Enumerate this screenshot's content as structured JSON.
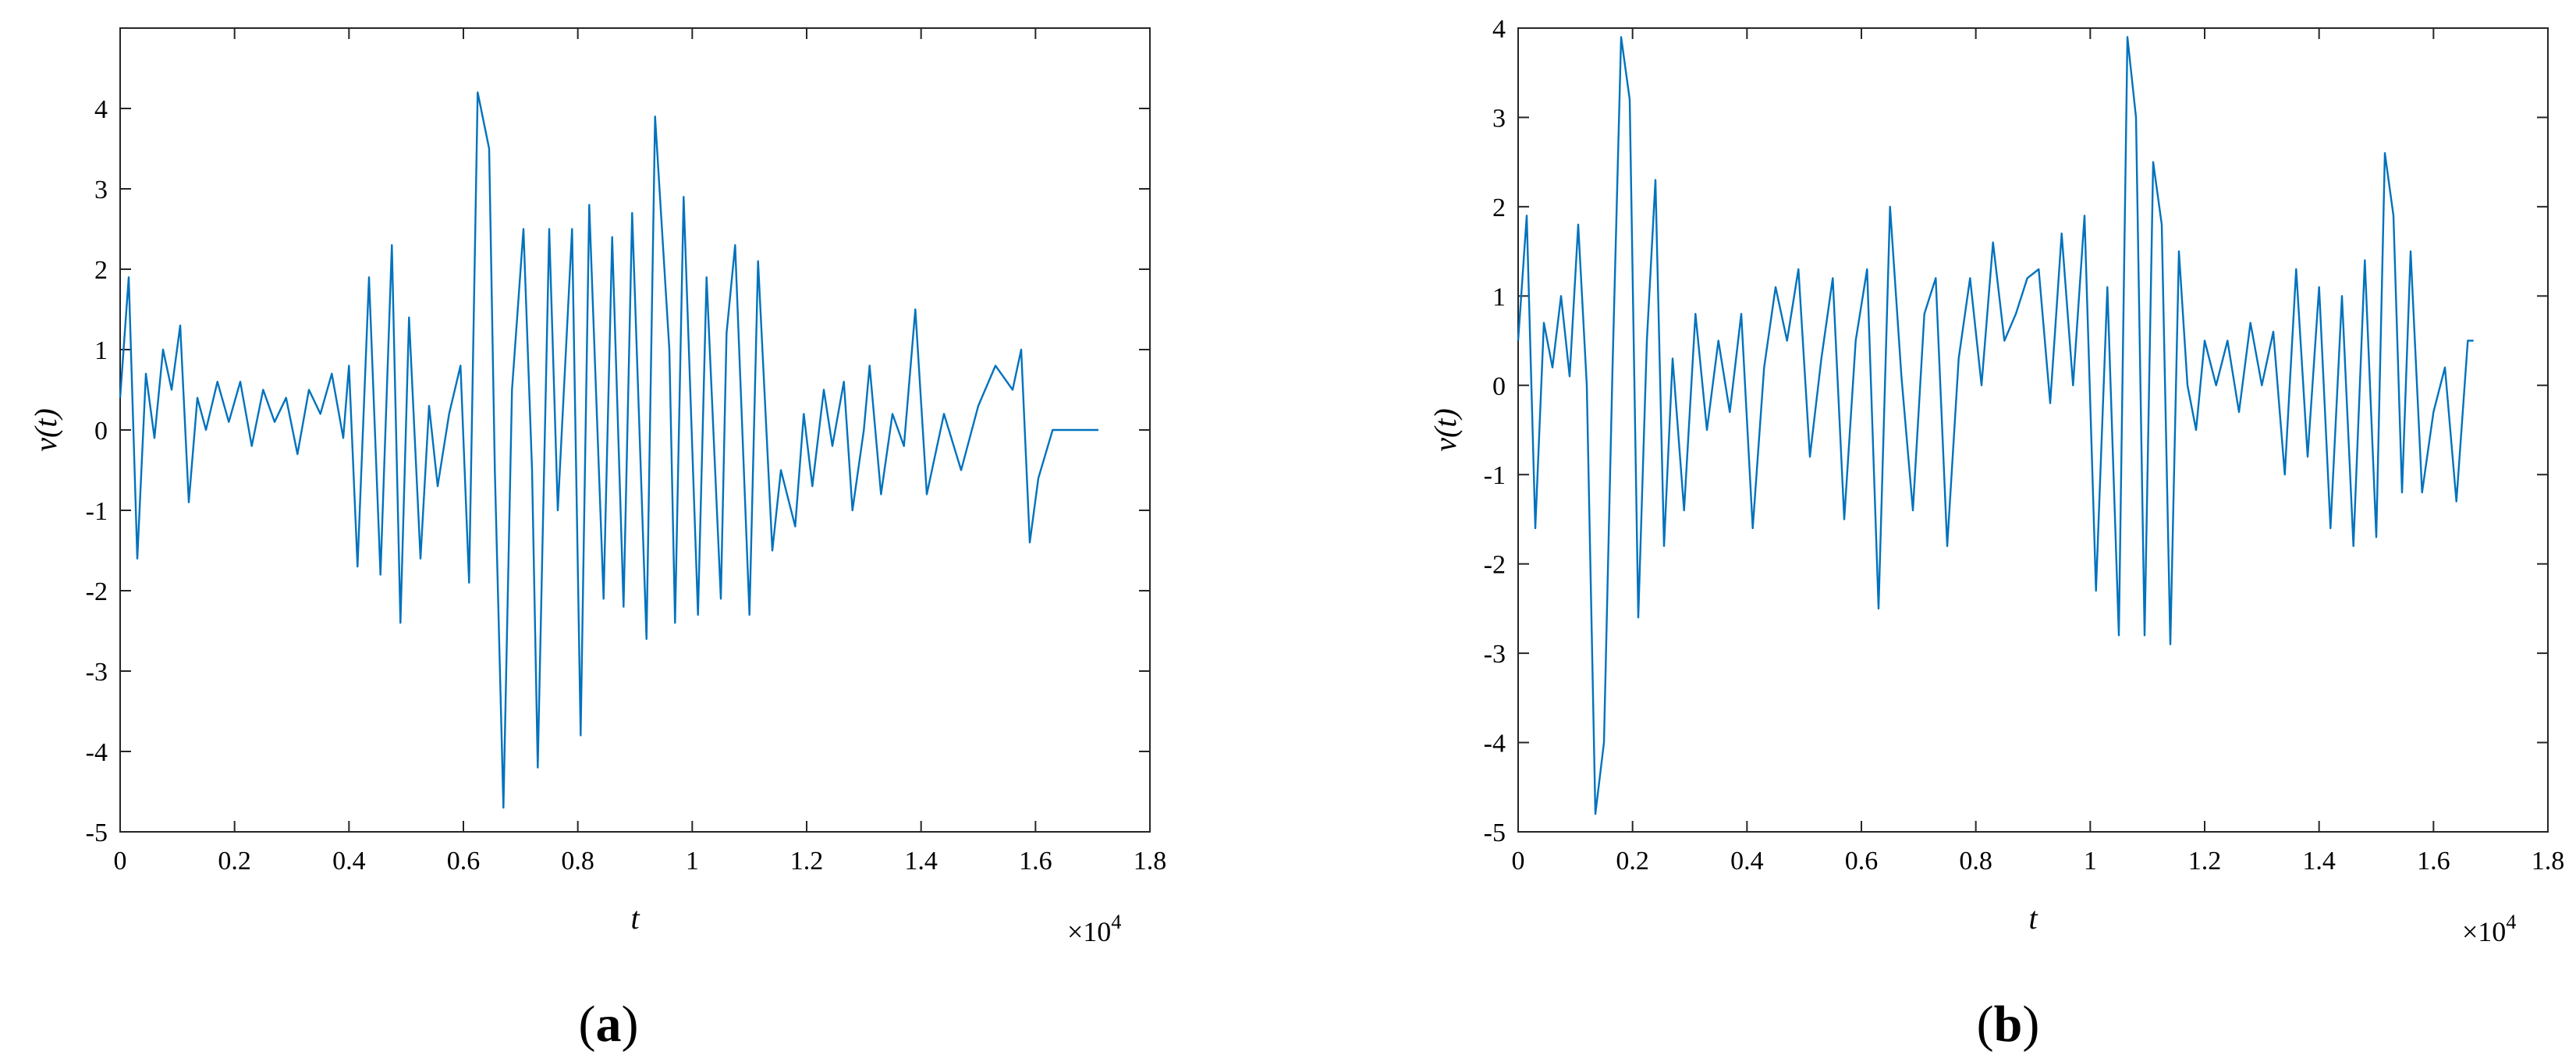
{
  "figure": {
    "panels": [
      {
        "label_open": "(",
        "label_letter": "a",
        "label_close": ")"
      },
      {
        "label_open": "(",
        "label_letter": "b",
        "label_close": ")"
      }
    ]
  },
  "chart_data": [
    {
      "type": "line",
      "xlabel": "t",
      "ylabel": "v(t)",
      "xlim": [
        0,
        18000
      ],
      "ylim": [
        -5,
        5
      ],
      "x_ticks": [
        0,
        2000,
        4000,
        6000,
        8000,
        10000,
        12000,
        14000,
        16000,
        18000
      ],
      "x_tick_labels": [
        "0",
        "0.2",
        "0.4",
        "0.6",
        "0.8",
        "1",
        "1.2",
        "1.4",
        "1.6",
        "1.8"
      ],
      "y_ticks": [
        -5,
        -4,
        -3,
        -2,
        -1,
        0,
        1,
        2,
        3,
        4
      ],
      "y_tick_labels": [
        "-5",
        "-4",
        "-3",
        "-2",
        "-1",
        "0",
        "1",
        "2",
        "3",
        "4"
      ],
      "x_multiplier": "×10",
      "x_multiplier_exp": "4",
      "grid": false,
      "line_color": "#0072BD",
      "series": [
        {
          "x": [
            0,
            150,
            300,
            450,
            600,
            750,
            900,
            1050,
            1200,
            1350,
            1500,
            1700,
            1900,
            2100,
            2300,
            2500,
            2700,
            2900,
            3100,
            3300,
            3500,
            3700,
            3900,
            4000,
            4150,
            4350,
            4550,
            4750,
            4900,
            5050,
            5250,
            5400,
            5550,
            5750,
            5950,
            6100,
            6250,
            6450,
            6550,
            6700,
            6850,
            7050,
            7200,
            7300,
            7500,
            7650,
            7900,
            8050,
            8200,
            8450,
            8600,
            8800,
            8950,
            9200,
            9350,
            9600,
            9700,
            9850,
            10100,
            10250,
            10500,
            10600,
            10750,
            11000,
            11150,
            11400,
            11550,
            11800,
            11950,
            12100,
            12300,
            12450,
            12650,
            12800,
            13000,
            13100,
            13300,
            13500,
            13700,
            13900,
            14100,
            14400,
            14700,
            15000,
            15300,
            15600,
            15750,
            15900,
            16050,
            16300,
            16500,
            16700,
            16850,
            17000,
            17100
          ],
          "y": [
            0.4,
            1.9,
            -1.6,
            0.7,
            -0.1,
            1.0,
            0.5,
            1.3,
            -0.9,
            0.4,
            0.0,
            0.6,
            0.1,
            0.6,
            -0.2,
            0.5,
            0.1,
            0.4,
            -0.3,
            0.5,
            0.2,
            0.7,
            -0.1,
            0.8,
            -1.7,
            1.9,
            -1.8,
            2.3,
            -2.4,
            1.4,
            -1.6,
            0.3,
            -0.7,
            0.2,
            0.8,
            -1.9,
            4.2,
            3.5,
            -0.5,
            -4.7,
            0.5,
            2.5,
            -0.5,
            -4.2,
            2.5,
            -1.0,
            2.5,
            -3.8,
            2.8,
            -2.1,
            2.4,
            -2.2,
            2.7,
            -2.6,
            3.9,
            1.0,
            -2.4,
            2.9,
            -2.3,
            1.9,
            -2.1,
            1.2,
            2.3,
            -2.3,
            2.1,
            -1.5,
            -0.5,
            -1.2,
            0.2,
            -0.7,
            0.5,
            -0.2,
            0.6,
            -1.0,
            0.0,
            0.8,
            -0.8,
            0.2,
            -0.2,
            1.5,
            -0.8,
            0.2,
            -0.5,
            0.3,
            0.8,
            0.5,
            1.0,
            -1.4,
            -0.6,
            0.0,
            0.0,
            0.0,
            0.0,
            0.0,
            0.0
          ]
        }
      ]
    },
    {
      "type": "line",
      "xlabel": "t",
      "ylabel": "v(t)",
      "xlim": [
        0,
        18000
      ],
      "ylim": [
        -5,
        4
      ],
      "x_ticks": [
        0,
        2000,
        4000,
        6000,
        8000,
        10000,
        12000,
        14000,
        16000,
        18000
      ],
      "x_tick_labels": [
        "0",
        "0.2",
        "0.4",
        "0.6",
        "0.8",
        "1",
        "1.2",
        "1.4",
        "1.6",
        "1.8"
      ],
      "y_ticks": [
        -5,
        -4,
        -3,
        -2,
        -1,
        0,
        1,
        2,
        3,
        4
      ],
      "y_tick_labels": [
        "-5",
        "-4",
        "-3",
        "-2",
        "-1",
        "0",
        "1",
        "2",
        "3",
        "4"
      ],
      "x_multiplier": "×10",
      "x_multiplier_exp": "4",
      "grid": false,
      "line_color": "#0072BD",
      "series": [
        {
          "x": [
            0,
            150,
            300,
            450,
            600,
            750,
            900,
            1050,
            1200,
            1350,
            1500,
            1650,
            1800,
            1950,
            2100,
            2250,
            2400,
            2550,
            2700,
            2900,
            3100,
            3300,
            3500,
            3700,
            3900,
            4100,
            4300,
            4500,
            4700,
            4900,
            5100,
            5300,
            5500,
            5700,
            5900,
            6100,
            6300,
            6500,
            6700,
            6900,
            7100,
            7300,
            7500,
            7700,
            7900,
            8100,
            8300,
            8500,
            8700,
            8900,
            9100,
            9300,
            9500,
            9700,
            9900,
            10100,
            10300,
            10500,
            10650,
            10800,
            10950,
            11100,
            11250,
            11400,
            11550,
            11700,
            11850,
            12000,
            12200,
            12400,
            12600,
            12800,
            13000,
            13200,
            13400,
            13600,
            13800,
            14000,
            14200,
            14400,
            14600,
            14800,
            15000,
            15150,
            15300,
            15450,
            15600,
            15800,
            16000,
            16200,
            16400,
            16600,
            16700
          ],
          "y": [
            0.5,
            1.9,
            -1.6,
            0.7,
            0.2,
            1.0,
            0.1,
            1.8,
            0.0,
            -4.8,
            -4.0,
            0.2,
            3.9,
            3.2,
            -2.6,
            0.5,
            2.3,
            -1.8,
            0.3,
            -1.4,
            0.8,
            -0.5,
            0.5,
            -0.3,
            0.8,
            -1.6,
            0.2,
            1.1,
            0.5,
            1.3,
            -0.8,
            0.3,
            1.2,
            -1.5,
            0.5,
            1.3,
            -2.5,
            2.0,
            0.1,
            -1.4,
            0.8,
            1.2,
            -1.8,
            0.3,
            1.2,
            0.0,
            1.6,
            0.5,
            0.8,
            1.2,
            1.3,
            -0.2,
            1.7,
            0.0,
            1.9,
            -2.3,
            1.1,
            -2.8,
            3.9,
            3.0,
            -2.8,
            2.5,
            1.8,
            -2.9,
            1.5,
            0.0,
            -0.5,
            0.5,
            0.0,
            0.5,
            -0.3,
            0.7,
            0.0,
            0.6,
            -1.0,
            1.3,
            -0.8,
            1.1,
            -1.6,
            1.0,
            -1.8,
            1.4,
            -1.7,
            2.6,
            1.9,
            -1.2,
            1.5,
            -1.2,
            -0.3,
            0.2,
            -1.3,
            0.5,
            0.5
          ]
        }
      ]
    }
  ]
}
